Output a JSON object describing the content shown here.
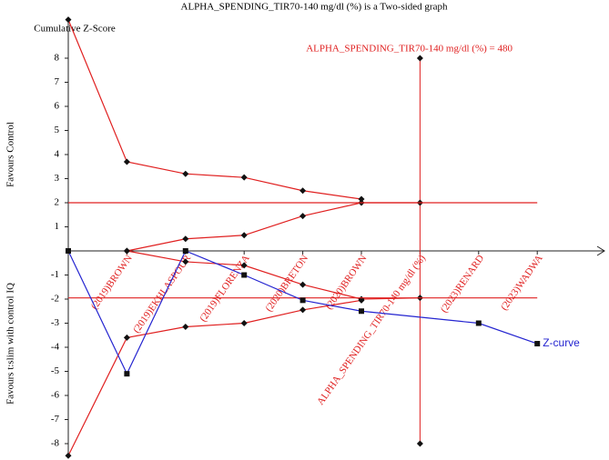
{
  "chart_data": {
    "type": "line",
    "title": "ALPHA_SPENDING_TIR70-140 mg/dl (%) is a Two-sided graph",
    "y_label": "Cumulative Z-Score",
    "upper_label": "Favours Control",
    "lower_label": "Favours t:slim with control IQ",
    "annotation": "ALPHA_SPENDING_TIR70-140 mg/dl (%) = 480",
    "categories": [
      null,
      "(2019)BROWN",
      "(2019)EKHLASPOUR",
      "(2019)FLORENZA",
      "(2020)BRETON",
      "(2020)BROWN",
      "ALPHA_SPENDING_TIR70-140 mg/dl (%)",
      "(2023)RENARD",
      "(2023)WADWA"
    ],
    "ylim": [
      -9,
      9.6
    ],
    "yticks": [
      8,
      7,
      6,
      5,
      4,
      3,
      2,
      1,
      -1,
      -2,
      -3,
      -4,
      -5,
      -6,
      -7,
      -8
    ],
    "series": [
      {
        "color": "#e02020",
        "marker": "diamond",
        "values": [
          9.6,
          3.7,
          3.2,
          3.05,
          2.5,
          2.15,
          null,
          null,
          null
        ]
      },
      {
        "color": "#e02020",
        "marker": "diamond",
        "values": [
          null,
          0,
          0.5,
          0.65,
          1.45,
          2.0,
          2.0,
          null,
          null
        ]
      },
      {
        "color": "#e02020",
        "marker": "diamond",
        "values": [
          null,
          0,
          -0.45,
          -0.6,
          -1.4,
          -2.0,
          -1.95,
          null,
          null
        ]
      },
      {
        "color": "#e02020",
        "marker": "diamond",
        "values": [
          -8.5,
          -3.6,
          -3.15,
          -3.0,
          -2.45,
          -2.05,
          null,
          null,
          null
        ]
      },
      {
        "color": "#e02020",
        "marker": "none",
        "values": [
          2,
          2,
          2,
          2,
          2,
          2,
          2,
          2,
          2
        ]
      },
      {
        "color": "#e02020",
        "marker": "none",
        "values": [
          -1.95,
          -1.95,
          -1.95,
          -1.95,
          -1.95,
          -1.95,
          -1.95,
          -1.95,
          -1.95
        ]
      },
      {
        "name": "Z-curve",
        "color": "#2424d0",
        "marker": "square",
        "values": [
          0,
          -5.1,
          0,
          -1.0,
          -2.05,
          -2.5,
          -2.75,
          -3.0,
          -3.85
        ]
      }
    ],
    "vline": {
      "x": 6,
      "color": "#e02020",
      "values": [
        8,
        -8
      ]
    }
  }
}
